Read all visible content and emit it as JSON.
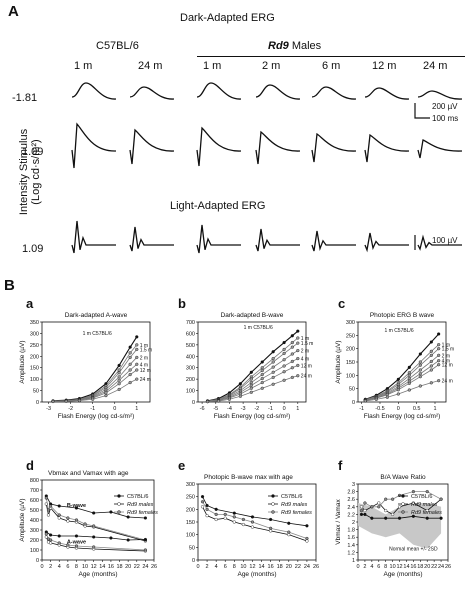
{
  "panelA": {
    "letter": "A",
    "dark_title": "Dark-Adapted ERG",
    "light_title": "Light-Adapted ERG",
    "group_c57": "C57BL/6",
    "group_rd9": "Rd9",
    "group_rd9_suffix": " Males",
    "ages": [
      "1 m",
      "24 m",
      "1 m",
      "2 m",
      "6 m",
      "12 m",
      "24 m"
    ],
    "row_labels": [
      "-1.81",
      "1.09",
      "1.09"
    ],
    "y_label": "Intensity Stimulus",
    "y_label2": "(Log cd·s/m²)",
    "scale_dark_amp": "200 µV",
    "scale_dark_time": "100 ms",
    "scale_light_amp": "100 µV"
  },
  "panelB": {
    "letter": "B",
    "subs": [
      "a",
      "b",
      "c",
      "d",
      "e",
      "f"
    ]
  },
  "chart_data": [
    {
      "id": "a",
      "type": "line",
      "title": "Dark-adapted A-wave",
      "xlabel": "Flash Energy (log cd-s/m²)",
      "ylabel": "Amplitude (µV)",
      "xlim": [
        -3.3,
        1.6
      ],
      "ylim": [
        0,
        350
      ],
      "xticks": [
        -3,
        -2,
        -1,
        0,
        1
      ],
      "yticks": [
        0,
        50,
        100,
        150,
        200,
        250,
        300,
        350
      ],
      "x": [
        -2.8,
        -2.2,
        -1.6,
        -1.0,
        -0.4,
        0.2,
        0.7,
        1.0
      ],
      "series": [
        {
          "name": "1 m C57BL/6",
          "values": [
            5,
            8,
            15,
            35,
            80,
            160,
            240,
            285
          ]
        },
        {
          "name": "1 m",
          "values": [
            4,
            6,
            12,
            30,
            70,
            140,
            215,
            250
          ]
        },
        {
          "name": "1.5 m",
          "values": [
            4,
            6,
            11,
            27,
            63,
            128,
            195,
            230
          ]
        },
        {
          "name": "2 m",
          "values": [
            3,
            5,
            10,
            23,
            55,
            110,
            165,
            195
          ]
        },
        {
          "name": "4 m",
          "values": [
            3,
            5,
            9,
            20,
            47,
            95,
            140,
            165
          ]
        },
        {
          "name": "12 m",
          "values": [
            3,
            4,
            8,
            17,
            40,
            80,
            120,
            140
          ]
        },
        {
          "name": "24 m",
          "values": [
            2,
            3,
            6,
            12,
            28,
            55,
            85,
            100
          ]
        }
      ],
      "annotations": [
        "1 m C57BL/6",
        "1 m",
        "1.5 m",
        "2 m",
        "4 m",
        "12 m",
        "24 m"
      ]
    },
    {
      "id": "b",
      "type": "line",
      "title": "Dark-adapted B-wave",
      "xlabel": "Flash Energy (log cd-s/m²)",
      "ylabel": "",
      "xlim": [
        -6.3,
        1.6
      ],
      "ylim": [
        0,
        700
      ],
      "xticks": [
        -6,
        -5,
        -4,
        -3,
        -2,
        -1,
        0,
        1
      ],
      "yticks": [
        0,
        100,
        200,
        300,
        400,
        500,
        600,
        700
      ],
      "x": [
        -5.6,
        -4.8,
        -4.0,
        -3.2,
        -2.4,
        -1.6,
        -0.8,
        0.0,
        0.6,
        1.0
      ],
      "series": [
        {
          "name": "1 m C57BL/6",
          "values": [
            10,
            30,
            80,
            160,
            260,
            350,
            440,
            520,
            580,
            620
          ]
        },
        {
          "name": "1 m",
          "values": [
            8,
            25,
            65,
            130,
            220,
            300,
            380,
            460,
            520,
            560
          ]
        },
        {
          "name": "1.5 m",
          "values": [
            7,
            22,
            58,
            118,
            200,
            275,
            350,
            425,
            480,
            515
          ]
        },
        {
          "name": "2 m",
          "values": [
            6,
            18,
            50,
            100,
            170,
            240,
            305,
            370,
            420,
            450
          ]
        },
        {
          "name": "4 m",
          "values": [
            5,
            15,
            42,
            85,
            145,
            205,
            260,
            315,
            355,
            380
          ]
        },
        {
          "name": "12 m",
          "values": [
            4,
            12,
            35,
            70,
            120,
            170,
            215,
            265,
            300,
            320
          ]
        },
        {
          "name": "24 m",
          "values": [
            3,
            8,
            24,
            50,
            85,
            120,
            155,
            190,
            215,
            230
          ]
        }
      ],
      "annotations": [
        "1 m C57BL/6",
        "1 m",
        "1.5 m",
        "2 m",
        "4 m",
        "12 m",
        "24 m"
      ]
    },
    {
      "id": "c",
      "type": "line",
      "title": "Photopic ERG  B wave",
      "xlabel": "Flash Energy (log cd-s/m²)",
      "ylabel": "Amplitude (µV)",
      "xlim": [
        -1.1,
        1.3
      ],
      "ylim": [
        0,
        300
      ],
      "xticks": [
        -1.0,
        -0.5,
        0.0,
        0.5,
        1.0
      ],
      "yticks": [
        0,
        50,
        100,
        150,
        200,
        250,
        300
      ],
      "x": [
        -0.9,
        -0.6,
        -0.3,
        0.0,
        0.3,
        0.6,
        0.9,
        1.1
      ],
      "series": [
        {
          "name": "1 m C57BL/6",
          "values": [
            10,
            25,
            50,
            85,
            130,
            180,
            225,
            255
          ]
        },
        {
          "name": "1 m",
          "values": [
            9,
            22,
            42,
            72,
            110,
            150,
            190,
            215
          ]
        },
        {
          "name": "1.5 m",
          "values": [
            8,
            20,
            38,
            66,
            100,
            138,
            175,
            200
          ]
        },
        {
          "name": "2 m",
          "values": [
            7,
            18,
            34,
            58,
            88,
            120,
            152,
            175
          ]
        },
        {
          "name": "4 m",
          "values": [
            6,
            16,
            30,
            52,
            78,
            106,
            135,
            155
          ]
        },
        {
          "name": "12 m",
          "values": [
            5,
            14,
            27,
            46,
            70,
            95,
            120,
            140
          ]
        },
        {
          "name": "24 m",
          "values": [
            4,
            10,
            18,
            30,
            45,
            60,
            72,
            80
          ]
        }
      ],
      "annotations": [
        "1 m C57BL/6",
        "1 m",
        "1.5 m",
        "2 m",
        "4 m",
        "12 m",
        "24 m"
      ]
    },
    {
      "id": "d",
      "type": "line",
      "title": "Vbmax and Vamax with age",
      "xlabel": "Age (months)",
      "ylabel": "Amplitude (µV)",
      "xlim": [
        0,
        26
      ],
      "ylim": [
        0,
        800
      ],
      "xticks": [
        0,
        2,
        4,
        6,
        8,
        10,
        12,
        14,
        16,
        18,
        20,
        22,
        24,
        26
      ],
      "yticks": [
        0,
        100,
        200,
        300,
        400,
        500,
        600,
        700,
        800
      ],
      "series": [
        {
          "name": "C57BL/6 B-wave",
          "x": [
            1,
            2,
            4,
            8,
            12,
            16,
            20,
            24
          ],
          "values": [
            640,
            560,
            540,
            520,
            470,
            480,
            430,
            420
          ]
        },
        {
          "name": "Rd9 males B-wave",
          "x": [
            1,
            1.5,
            2,
            4,
            6,
            8,
            10,
            12,
            24
          ],
          "values": [
            560,
            450,
            520,
            420,
            390,
            380,
            340,
            330,
            190
          ]
        },
        {
          "name": "Rd9 females B-wave",
          "x": [
            1,
            1.5,
            2,
            4,
            6,
            8,
            10,
            12,
            24
          ],
          "values": [
            620,
            500,
            540,
            450,
            420,
            400,
            360,
            340,
            200
          ]
        },
        {
          "name": "C57BL/6 A-wave",
          "x": [
            1,
            2,
            4,
            8,
            12,
            16,
            20,
            24
          ],
          "values": [
            280,
            250,
            240,
            240,
            230,
            220,
            200,
            205
          ]
        },
        {
          "name": "Rd9 males A-wave",
          "x": [
            1,
            1.5,
            2,
            4,
            6,
            8,
            12,
            24
          ],
          "values": [
            230,
            180,
            170,
            150,
            130,
            120,
            110,
            90
          ]
        },
        {
          "name": "Rd9 females A-wave",
          "x": [
            1,
            1.5,
            2,
            4,
            6,
            8,
            12,
            24
          ],
          "values": [
            260,
            210,
            200,
            170,
            150,
            140,
            130,
            100
          ]
        }
      ],
      "legend": [
        "C57BL/6",
        "Rd9 males",
        "Rd9 females"
      ],
      "annotations": [
        "B-wave",
        "A-wave"
      ]
    },
    {
      "id": "e",
      "type": "line",
      "title": "Photopic B-wave max with age",
      "xlabel": "Age (months)",
      "ylabel": "",
      "xlim": [
        0,
        26
      ],
      "ylim": [
        0,
        300
      ],
      "xticks": [
        0,
        2,
        4,
        6,
        8,
        10,
        12,
        14,
        16,
        18,
        20,
        22,
        24,
        26
      ],
      "yticks": [
        0,
        50,
        100,
        150,
        200,
        250,
        300
      ],
      "series": [
        {
          "name": "C57BL/6",
          "x": [
            1,
            2,
            4,
            8,
            12,
            16,
            20,
            24
          ],
          "values": [
            250,
            215,
            200,
            185,
            170,
            160,
            145,
            135
          ]
        },
        {
          "name": "Rd9 males",
          "x": [
            1,
            2,
            4,
            6,
            8,
            10,
            12,
            16,
            20,
            24
          ],
          "values": [
            210,
            175,
            160,
            165,
            150,
            140,
            130,
            115,
            100,
            75
          ]
        },
        {
          "name": "Rd9 females",
          "x": [
            1,
            2,
            4,
            6,
            8,
            10,
            12,
            16,
            20,
            24
          ],
          "values": [
            230,
            200,
            180,
            180,
            170,
            160,
            150,
            125,
            110,
            85
          ]
        }
      ],
      "legend": [
        "C57BL/6",
        "Rd9 males",
        "Rd9 females"
      ]
    },
    {
      "id": "f",
      "type": "line",
      "title": "B/A Wave Ratio",
      "xlabel": "Age (months)",
      "ylabel": "Vbmax / Vamax",
      "xlim": [
        0,
        26
      ],
      "ylim": [
        1.0,
        3.0
      ],
      "xticks": [
        0,
        2,
        4,
        6,
        8,
        10,
        12,
        14,
        16,
        18,
        20,
        22,
        24,
        26
      ],
      "yticks": [
        1.0,
        1.2,
        1.4,
        1.6,
        1.8,
        2.0,
        2.2,
        2.4,
        2.6,
        2.8,
        3.0
      ],
      "series": [
        {
          "name": "C57BL/6",
          "x": [
            1,
            2,
            4,
            8,
            12,
            16,
            20,
            24
          ],
          "values": [
            2.2,
            2.2,
            2.1,
            2.1,
            2.1,
            2.15,
            2.1,
            2.1
          ]
        },
        {
          "name": "Rd9 males",
          "x": [
            1,
            2,
            4,
            6,
            8,
            10,
            12,
            16,
            20,
            24
          ],
          "values": [
            2.4,
            2.3,
            2.4,
            2.5,
            2.3,
            2.2,
            2.4,
            2.5,
            2.3,
            2.6
          ]
        },
        {
          "name": "Rd9 females",
          "x": [
            1,
            2,
            4,
            6,
            8,
            10,
            12,
            16,
            20,
            24
          ],
          "values": [
            2.3,
            2.5,
            2.4,
            2.4,
            2.6,
            2.6,
            2.7,
            2.8,
            2.8,
            2.6
          ]
        }
      ],
      "band": {
        "x": [
          0,
          4,
          8,
          12,
          16,
          20,
          24
        ],
        "lower": [
          1.9,
          1.7,
          1.6,
          1.7,
          1.4,
          1.3,
          1.7
        ],
        "upper": [
          2.5,
          2.4,
          2.2,
          2.4,
          2.5,
          2.5,
          2.4
        ]
      },
      "legend": [
        "C57BL/6",
        "Rd9 males",
        "Rd9 females"
      ],
      "annotations": [
        "Normal mean +/- 2SD"
      ]
    }
  ]
}
